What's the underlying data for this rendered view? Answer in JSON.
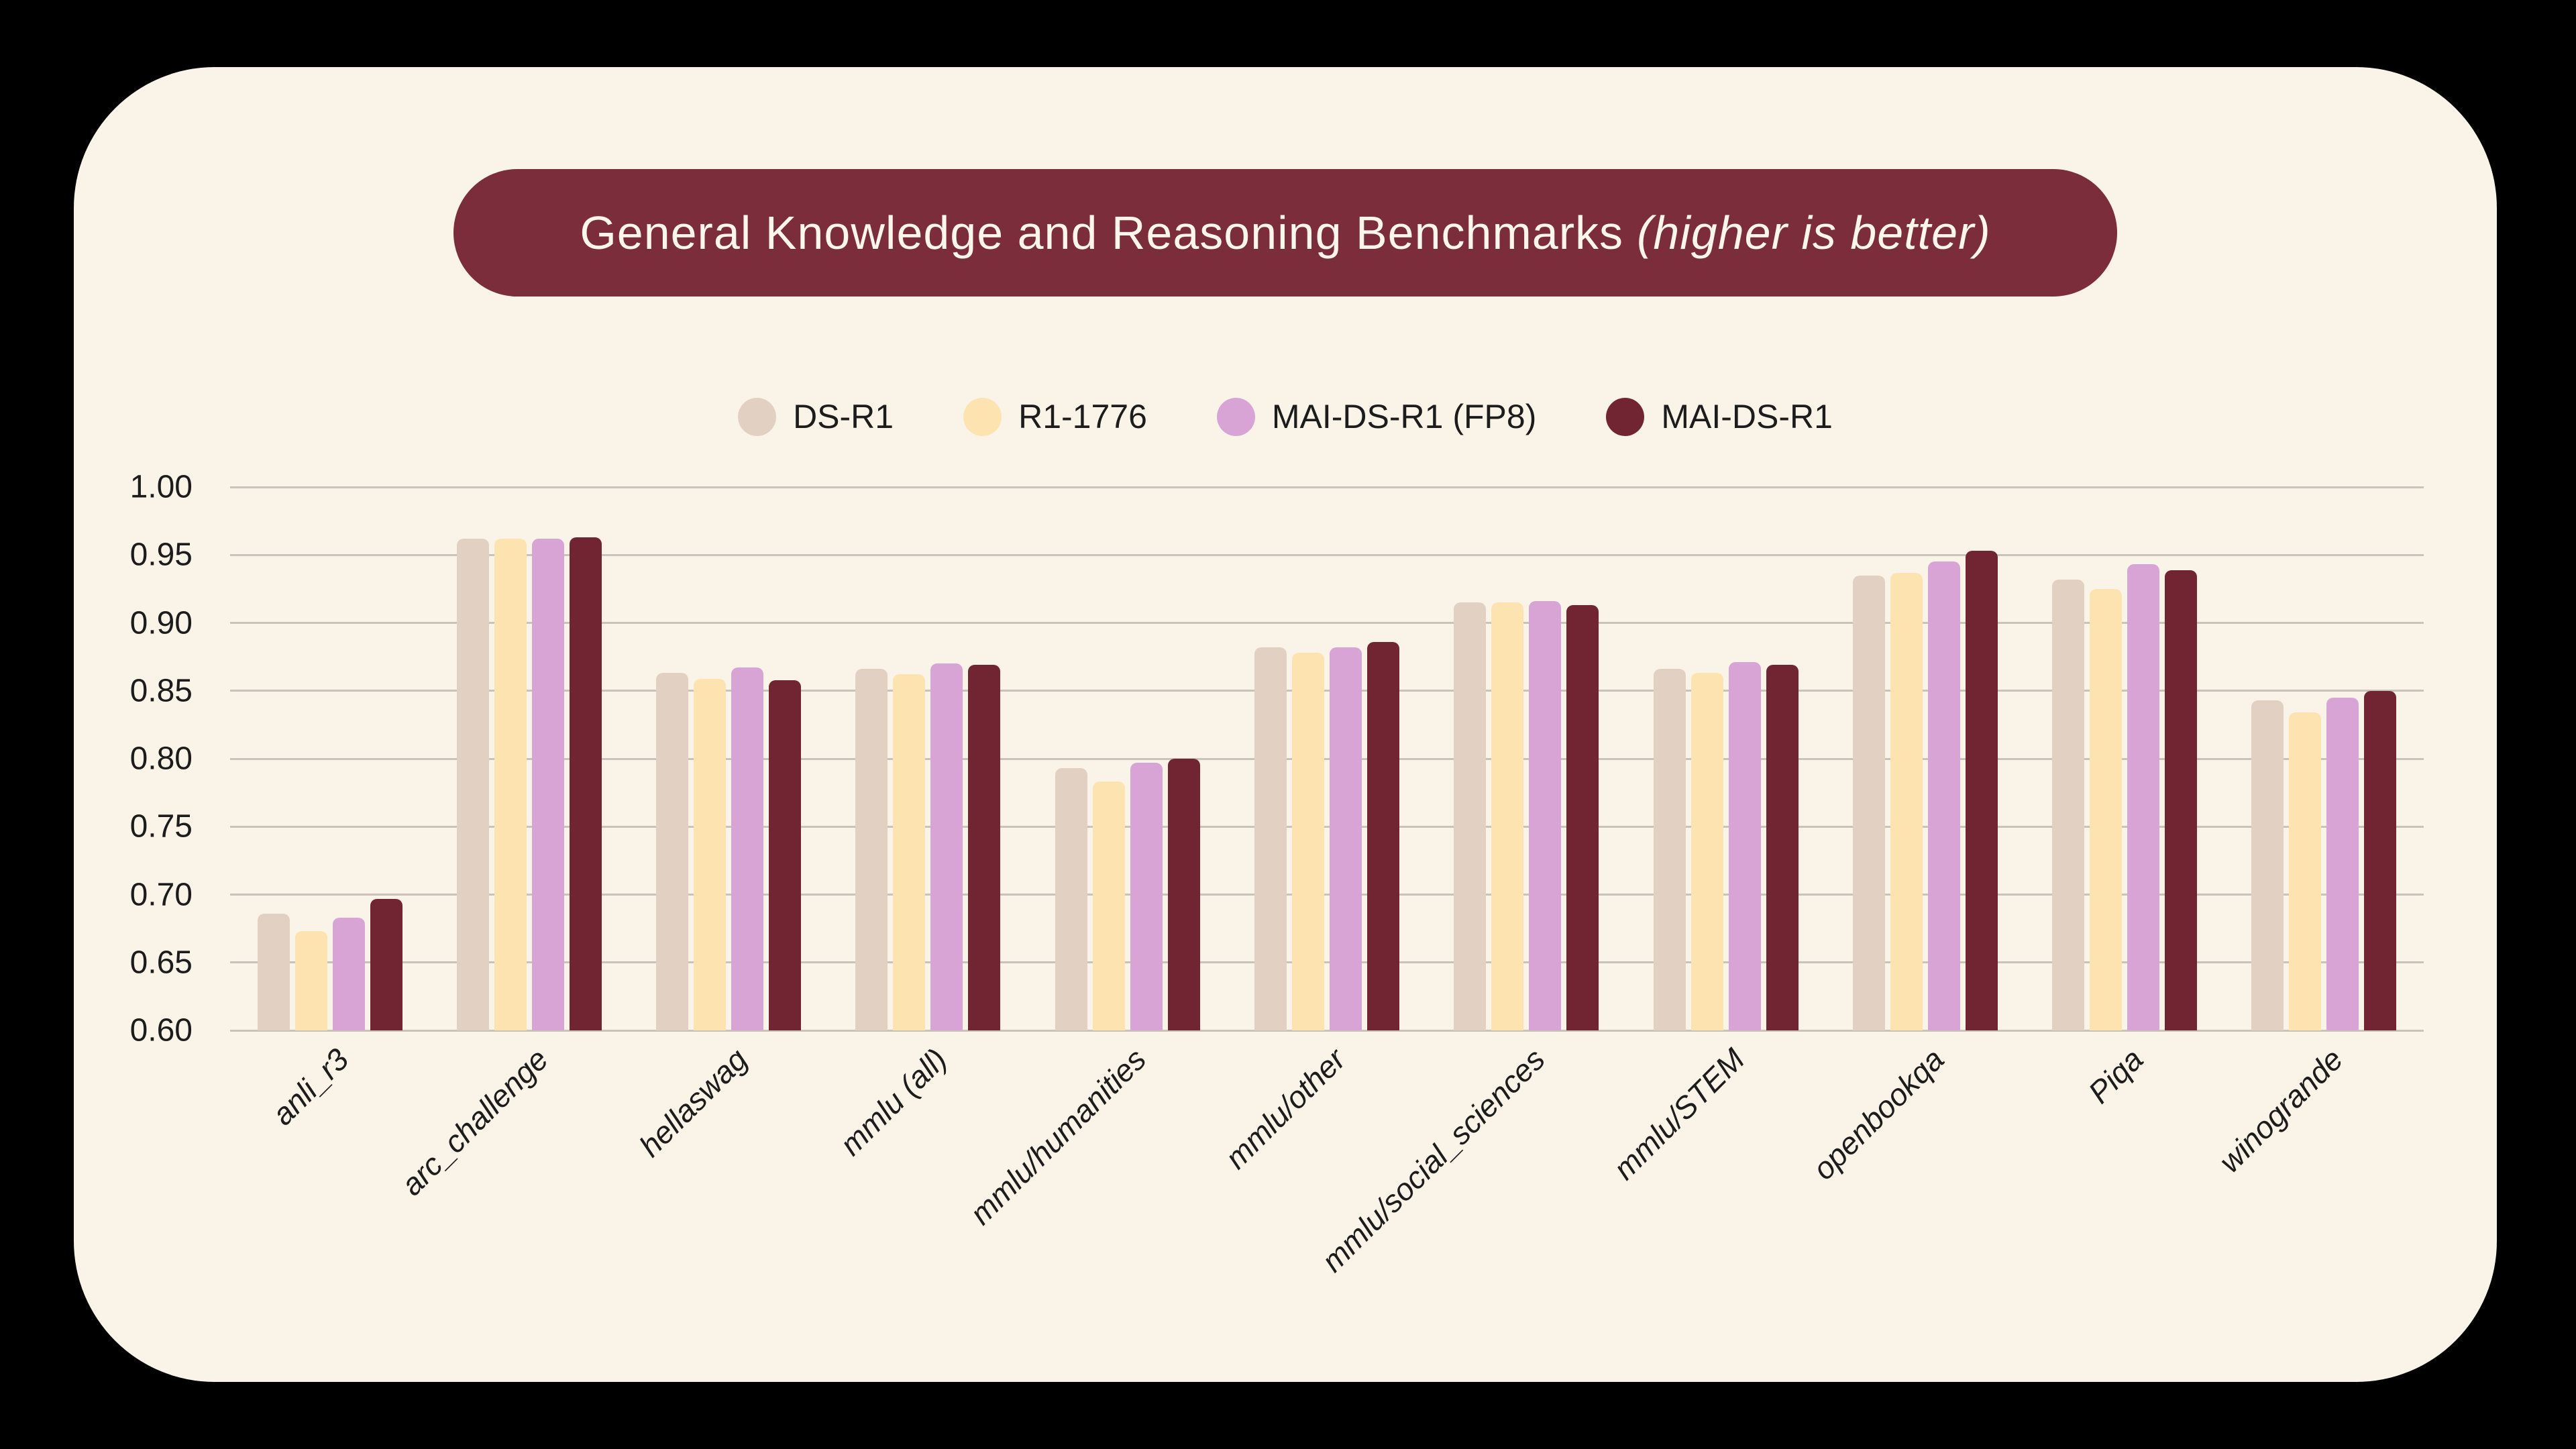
{
  "title": {
    "main": "General Knowledge and Reasoning Benchmarks",
    "suffix": "(higher is better)"
  },
  "colors": {
    "page_bg": "#000000",
    "card_bg": "#faf3e8",
    "title_pill_bg": "#7b2d3c",
    "title_text": "#fdf6ec",
    "grid_line": "#c9c4bb",
    "axis_text": "#1c1c1c"
  },
  "legend": {
    "items": [
      "DS-R1",
      "R1-1776",
      "MAI-DS-R1 (FP8)",
      "MAI-DS-R1"
    ]
  },
  "chart_data": {
    "type": "bar",
    "title": "General Knowledge and Reasoning Benchmarks (higher is better)",
    "categories": [
      "anli_r3",
      "arc_challenge",
      "hellaswag",
      "mmlu (all)",
      "mmlu/humanities",
      "mmlu/other",
      "mmlu/social_sciences",
      "mmlu/STEM",
      "openbookqa",
      "Piqa",
      "winogrande"
    ],
    "series": [
      {
        "name": "DS-R1",
        "color": "#e2d1c3",
        "values": [
          0.686,
          0.962,
          0.863,
          0.866,
          0.793,
          0.882,
          0.915,
          0.866,
          0.935,
          0.932,
          0.843
        ]
      },
      {
        "name": "R1-1776",
        "color": "#fde3b0",
        "values": [
          0.673,
          0.962,
          0.859,
          0.862,
          0.783,
          0.878,
          0.915,
          0.863,
          0.937,
          0.925,
          0.834
        ]
      },
      {
        "name": "MAI-DS-R1 (FP8)",
        "color": "#d7a4d5",
        "values": [
          0.683,
          0.962,
          0.867,
          0.87,
          0.797,
          0.882,
          0.916,
          0.871,
          0.945,
          0.943,
          0.845
        ]
      },
      {
        "name": "MAI-DS-R1",
        "color": "#712431",
        "values": [
          0.697,
          0.963,
          0.858,
          0.869,
          0.8,
          0.886,
          0.913,
          0.869,
          0.953,
          0.939,
          0.85
        ]
      }
    ],
    "ylim": [
      0.6,
      1.0
    ],
    "ytick_values": [
      1.0,
      0.95,
      0.9,
      0.85,
      0.8,
      0.75,
      0.7,
      0.65,
      0.6
    ],
    "ytick_labels": [
      "1.00",
      "0.95",
      "0.90",
      "0.85",
      "0.80",
      "0.75",
      "0.70",
      "0.65",
      "0.60"
    ],
    "grid": true,
    "legend_position": "top-center",
    "xlabel": "",
    "ylabel": ""
  }
}
